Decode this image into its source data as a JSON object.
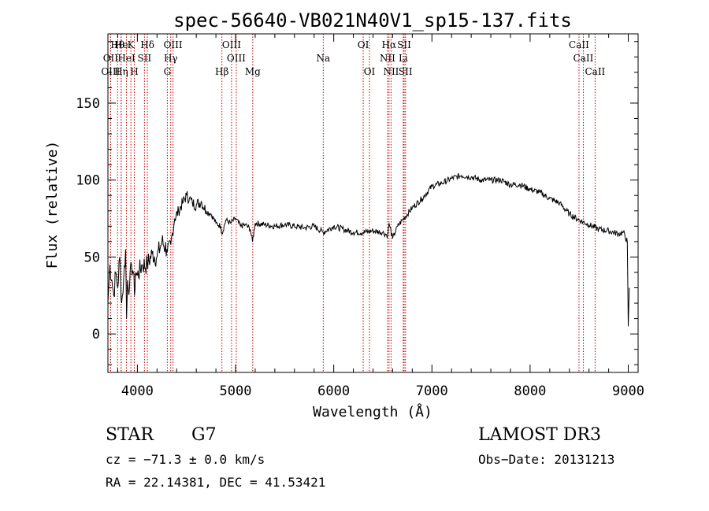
{
  "chart_data": {
    "type": "line",
    "title": "spec-56640-VB021N40V1_sp15-137.fits",
    "xlabel": "Wavelength (Å)",
    "ylabel": "Flux (relative)",
    "xlim": [
      3700,
      9100
    ],
    "ylim": [
      -25,
      195
    ],
    "x_ticks": [
      4000,
      5000,
      6000,
      7000,
      8000,
      9000
    ],
    "x_tick_labels": [
      "4000",
      "5000",
      "6000",
      "7000",
      "8000",
      "9000"
    ],
    "y_ticks": [
      0,
      50,
      100,
      150
    ],
    "y_tick_labels": [
      "0",
      "50",
      "100",
      "150"
    ],
    "grid": false,
    "series": [
      {
        "name": "spectrum",
        "x": [
          3700,
          3720,
          3740,
          3760,
          3780,
          3800,
          3820,
          3840,
          3860,
          3880,
          3890,
          3900,
          3920,
          3940,
          3960,
          3970,
          3980,
          4000,
          4050,
          4100,
          4150,
          4200,
          4250,
          4300,
          4340,
          4380,
          4420,
          4460,
          4500,
          4530,
          4560,
          4600,
          4650,
          4700,
          4750,
          4800,
          4850,
          4861,
          4900,
          4950,
          5000,
          5050,
          5100,
          5150,
          5172,
          5200,
          5300,
          5400,
          5500,
          5600,
          5700,
          5800,
          5893,
          6000,
          6100,
          6200,
          6300,
          6400,
          6500,
          6550,
          6563,
          6600,
          6650,
          6700,
          6800,
          6900,
          7000,
          7100,
          7200,
          7300,
          7400,
          7500,
          7600,
          7700,
          7800,
          7900,
          8000,
          8100,
          8200,
          8300,
          8400,
          8500,
          8600,
          8700,
          8800,
          8900,
          8950,
          8990,
          9000,
          9010
        ],
        "y": [
          20,
          45,
          35,
          25,
          40,
          30,
          50,
          20,
          35,
          55,
          10,
          35,
          30,
          45,
          40,
          25,
          40,
          38,
          45,
          45,
          52,
          50,
          60,
          55,
          58,
          75,
          80,
          85,
          90,
          88,
          85,
          84,
          86,
          80,
          78,
          72,
          70,
          65,
          74,
          72,
          75,
          70,
          71,
          68,
          60,
          72,
          71,
          70,
          71,
          70,
          69,
          70,
          66,
          70,
          68,
          66,
          66,
          67,
          66,
          64,
          72,
          62,
          70,
          74,
          82,
          88,
          96,
          98,
          101,
          103,
          102,
          100,
          100,
          100,
          97,
          97,
          94,
          92,
          88,
          85,
          78,
          74,
          71,
          68,
          67,
          65,
          66,
          60,
          5,
          30
        ]
      }
    ],
    "spectral_lines": [
      {
        "label": "Hθ",
        "x": 3798,
        "row": 1
      },
      {
        "label": "He",
        "x": 3835,
        "row": 1
      },
      {
        "label": "OII",
        "x": 3727,
        "row": 2
      },
      {
        "label": "OIII",
        "x": 3727,
        "row": 3
      },
      {
        "label": "Hη",
        "x": 3835,
        "row": 3
      },
      {
        "label": "K",
        "x": 3934,
        "row": 1
      },
      {
        "label": "HeI",
        "x": 3889,
        "row": 2
      },
      {
        "label": "SII",
        "x": 4072,
        "row": 2
      },
      {
        "label": "H",
        "x": 3969,
        "row": 3
      },
      {
        "label": "Hδ",
        "x": 4102,
        "row": 1
      },
      {
        "label": "OIII",
        "x": 4363,
        "row": 1
      },
      {
        "label": "Hγ",
        "x": 4340,
        "row": 2
      },
      {
        "label": "G",
        "x": 4305,
        "row": 3
      },
      {
        "label": "OIII",
        "x": 4959,
        "row": 1
      },
      {
        "label": "OIII",
        "x": 5007,
        "row": 2
      },
      {
        "label": "Hβ",
        "x": 4861,
        "row": 3
      },
      {
        "label": "Mg",
        "x": 5175,
        "row": 3
      },
      {
        "label": "Na",
        "x": 5893,
        "row": 2
      },
      {
        "label": "OI",
        "x": 6300,
        "row": 1
      },
      {
        "label": "OI",
        "x": 6364,
        "row": 3
      },
      {
        "label": "Hα",
        "x": 6563,
        "row": 1
      },
      {
        "label": "SII",
        "x": 6717,
        "row": 1
      },
      {
        "label": "NII",
        "x": 6548,
        "row": 2
      },
      {
        "label": "Li",
        "x": 6708,
        "row": 2
      },
      {
        "label": "NII",
        "x": 6584,
        "row": 3
      },
      {
        "label": "SII",
        "x": 6731,
        "row": 3
      },
      {
        "label": "CaII",
        "x": 8498,
        "row": 1
      },
      {
        "label": "CaII",
        "x": 8542,
        "row": 2
      },
      {
        "label": "CaII",
        "x": 8662,
        "row": 3
      }
    ]
  },
  "info": {
    "object_class": "STAR",
    "subclass": "G7",
    "survey": "LAMOST DR3",
    "redshift": "cz = −71.3 ± 0.0 km/s",
    "obs_date": "Obs−Date: 20131213",
    "coords": "RA =  22.14381, DEC =  41.53421"
  }
}
